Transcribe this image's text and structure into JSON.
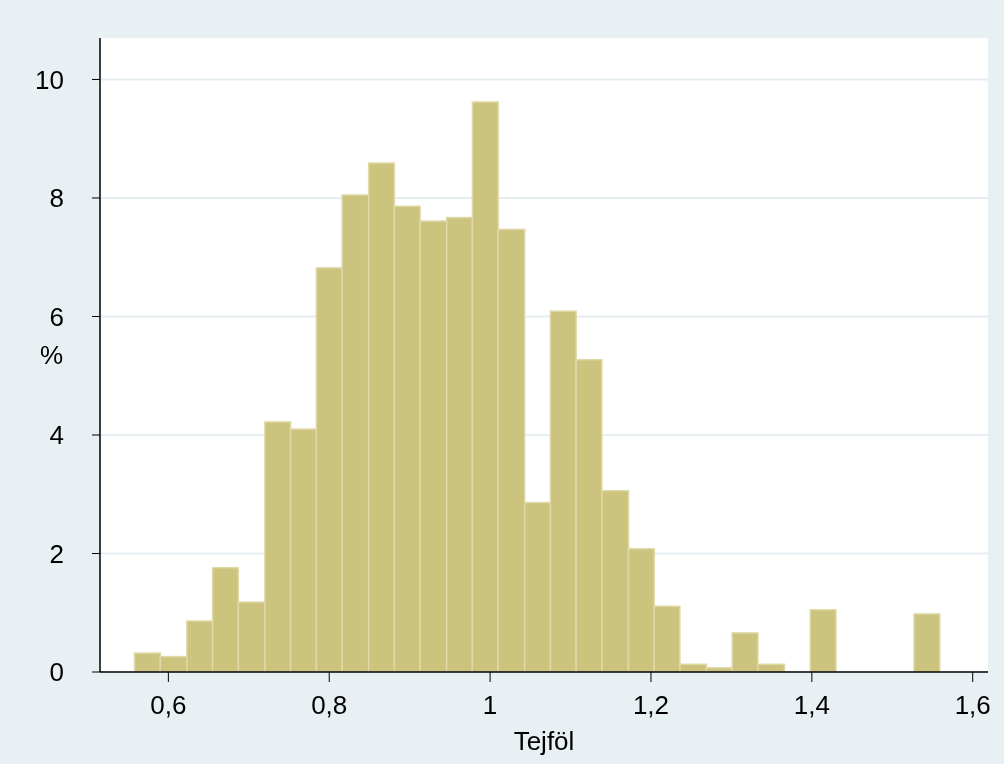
{
  "chart_data": {
    "type": "histogram",
    "xlabel": "Tejföl",
    "ylabel": "%",
    "bins": [
      0.558,
      0.59,
      0.623,
      0.655,
      0.687,
      0.72,
      0.752,
      0.784,
      0.816,
      0.849,
      0.881,
      0.913,
      0.946,
      0.978,
      1.01,
      1.043,
      1.075,
      1.107,
      1.139,
      1.172,
      1.204,
      1.236,
      1.269,
      1.301,
      1.333,
      1.366,
      1.398,
      1.43,
      1.527,
      1.559
    ],
    "values": [
      0.32,
      0.26,
      0.86,
      1.76,
      1.18,
      4.22,
      4.1,
      6.82,
      8.05,
      8.59,
      7.86,
      7.61,
      7.67,
      9.62,
      7.47,
      2.86,
      6.09,
      5.27,
      3.06,
      2.08,
      1.11,
      0.13,
      0.07,
      0.66,
      0.13,
      0,
      1.05,
      0,
      0.98
    ],
    "color": "#cbc37e",
    "xlim": [
      0.515,
      1.619
    ],
    "xticks": [
      {
        "value": 0.6,
        "label": "0,6"
      },
      {
        "value": 0.8,
        "label": "0,8"
      },
      1,
      {
        "value": 1.2,
        "label": "1,2"
      },
      {
        "value": 1.4,
        "label": "1,4"
      },
      {
        "value": 1.6,
        "label": "1,6"
      }
    ],
    "ylim": [
      0,
      10.7
    ],
    "yticks": [
      0,
      2,
      4,
      6,
      8,
      10
    ],
    "grid": "y"
  }
}
